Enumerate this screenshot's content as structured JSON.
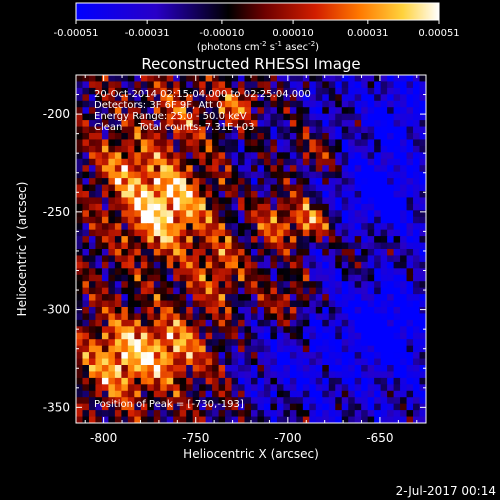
{
  "colorbar": {
    "tick_labels": [
      "-0.00051",
      "-0.00031",
      "-0.00010",
      "0.00010",
      "0.00031",
      "0.00051"
    ],
    "tick_values": [
      -0.00051,
      -0.00031,
      -0.0001,
      0.0001,
      0.00031,
      0.00051
    ],
    "range": [
      -0.00051,
      0.00051
    ],
    "units_prefix": "(photons cm",
    "units_e1": "-2",
    "units_mid": " s",
    "units_e2": "-1",
    "units_mid2": " asec",
    "units_e3": "-2",
    "units_suffix": ")",
    "colors": [
      "#0000ff",
      "#2800c8",
      "#000000",
      "#6e0000",
      "#d21e00",
      "#ff7800",
      "#ffd23c",
      "#ffffff"
    ]
  },
  "annotations": {
    "time": "20-Oct-2014 02:15:04.000 to 02:25:04.000",
    "detectors": "Detectors: 3F 6F 9F, Att 0",
    "energy": "Energy Range: 25.0 - 50.0 keV",
    "clean": "Clean     Total counts: 7.31E+03",
    "peak": "Position of Peak = [-730,-193]"
  },
  "footer": {
    "date": "2-Jul-2017 00:14"
  },
  "chart_data": {
    "type": "heatmap",
    "title": "Reconstructed RHESSI Image",
    "xlabel": "Heliocentric X (arcsec)",
    "ylabel": "Heliocentric Y (arcsec)",
    "xlim": [
      -815,
      -625
    ],
    "ylim": [
      -358,
      -180
    ],
    "x_ticks": [
      -800,
      -750,
      -700,
      -650
    ],
    "y_ticks": [
      -350,
      -300,
      -250,
      -200
    ],
    "x_tick_labels": [
      "-800",
      "-750",
      "-700",
      "-650"
    ],
    "y_tick_labels": [
      "-350",
      "-300",
      "-250",
      "-200"
    ],
    "value_range": [
      -0.00051,
      0.00051
    ],
    "peak_position": [
      -730,
      -193
    ]
  }
}
